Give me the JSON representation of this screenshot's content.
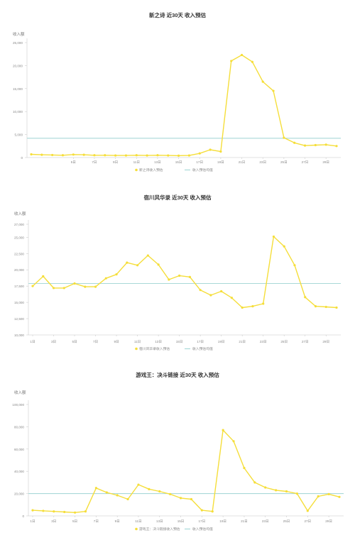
{
  "chart_data": [
    {
      "type": "line",
      "title": "新之诗 近30天 收入预估",
      "ylabel": "收入额",
      "ylim": [
        0,
        25000
      ],
      "yticks": [
        0,
        5000,
        10000,
        15000,
        20000,
        25000
      ],
      "ytick_labels": [
        "0",
        "5,000",
        "10,000",
        "15,000",
        "20,000",
        "25,000"
      ],
      "categories": [
        "1日",
        "2日",
        "3日",
        "4日",
        "5日",
        "6日",
        "7日",
        "8日",
        "9日",
        "10日",
        "11日",
        "12日",
        "13日",
        "14日",
        "15日",
        "16日",
        "17日",
        "18日",
        "19日",
        "20日",
        "21日",
        "22日",
        "23日",
        "24日",
        "25日",
        "26日",
        "27日",
        "28日",
        "29日",
        "30日"
      ],
      "xtick_labels": [
        "5日",
        "7日",
        "9日",
        "11日",
        "13日",
        "15日",
        "17日",
        "19日",
        "21日",
        "23日",
        "25日",
        "27日",
        "29日"
      ],
      "series": [
        {
          "name": "新之诗收入预估",
          "color": "#f5de3a",
          "values": [
            700,
            600,
            550,
            500,
            650,
            600,
            500,
            500,
            450,
            450,
            500,
            450,
            500,
            450,
            400,
            450,
            900,
            1700,
            1300,
            21000,
            22300,
            20800,
            16500,
            14500,
            4300,
            3200,
            2600,
            2700,
            2800,
            2500
          ]
        },
        {
          "name": "收入预估均值",
          "color": "#a9d9d8",
          "constant": 4200
        }
      ],
      "legend": "bottom-center",
      "grid": false
    },
    {
      "type": "line",
      "title": "宿川风华录 近30天 收入预估",
      "ylabel": "收入额",
      "ylim": [
        10000,
        27000
      ],
      "yticks": [
        10000,
        12500,
        15000,
        17500,
        20000,
        22500,
        25000,
        27000
      ],
      "ytick_labels": [
        "10,000",
        "12,500",
        "15,000",
        "17,500",
        "20,000",
        "22,500",
        "25,000",
        "27,000"
      ],
      "categories": [
        "1日",
        "2日",
        "3日",
        "4日",
        "5日",
        "6日",
        "7日",
        "8日",
        "9日",
        "10日",
        "11日",
        "12日",
        "13日",
        "14日",
        "15日",
        "16日",
        "17日",
        "18日",
        "19日",
        "20日",
        "21日",
        "22日",
        "23日",
        "24日",
        "25日",
        "26日",
        "27日",
        "28日",
        "29日",
        "30日"
      ],
      "xtick_labels": [
        "1日",
        "3日",
        "5日",
        "7日",
        "9日",
        "11日",
        "13日",
        "15日",
        "17日",
        "19日",
        "21日",
        "23日",
        "25日",
        "27日",
        "29日"
      ],
      "series": [
        {
          "name": "宿川风华录收入预估",
          "color": "#f5de3a",
          "values": [
            17500,
            19000,
            17200,
            17200,
            17900,
            17400,
            17400,
            18700,
            19300,
            21100,
            20700,
            22200,
            20800,
            18500,
            19100,
            18900,
            16900,
            16100,
            16700,
            15700,
            14200,
            14400,
            14800,
            25100,
            23600,
            20700,
            15800,
            14400,
            14300,
            14200
          ]
        },
        {
          "name": "收入预估均值",
          "color": "#a9d9d8",
          "constant": 17900
        }
      ],
      "legend": "bottom-center",
      "grid": false
    },
    {
      "type": "line",
      "title": "游戏王：决斗链接 近30天 收入预估",
      "ylabel": "收入额",
      "ylim": [
        0,
        100000
      ],
      "yticks": [
        0,
        20000,
        40000,
        60000,
        80000,
        100000
      ],
      "ytick_labels": [
        "0",
        "20,000",
        "40,000",
        "60,000",
        "80,000",
        "100,000"
      ],
      "categories": [
        "1日",
        "2日",
        "3日",
        "4日",
        "5日",
        "6日",
        "7日",
        "8日",
        "9日",
        "10日",
        "11日",
        "12日",
        "13日",
        "14日",
        "15日",
        "16日",
        "17日",
        "18日",
        "19日",
        "20日",
        "21日",
        "22日",
        "23日",
        "24日",
        "25日",
        "26日",
        "27日",
        "28日",
        "29日",
        "30日"
      ],
      "xtick_labels": [
        "1日",
        "3日",
        "5日",
        "7日",
        "9日",
        "11日",
        "13日",
        "15日",
        "17日",
        "19日",
        "21日",
        "23日",
        "25日",
        "27日",
        "29日"
      ],
      "series": [
        {
          "name": "游戏王：决斗链接收入预估",
          "color": "#f5de3a",
          "values": [
            5000,
            4500,
            4000,
            3500,
            3000,
            4000,
            25000,
            21000,
            18500,
            15000,
            28000,
            24000,
            22000,
            19500,
            16000,
            15000,
            5000,
            4000,
            77000,
            67000,
            43000,
            30000,
            25500,
            23000,
            22000,
            20000,
            4500,
            17500,
            19500,
            17000
          ]
        },
        {
          "name": "收入预估均值",
          "color": "#a9d9d8",
          "constant": 20000
        }
      ],
      "legend": "bottom-center",
      "grid": false
    }
  ]
}
